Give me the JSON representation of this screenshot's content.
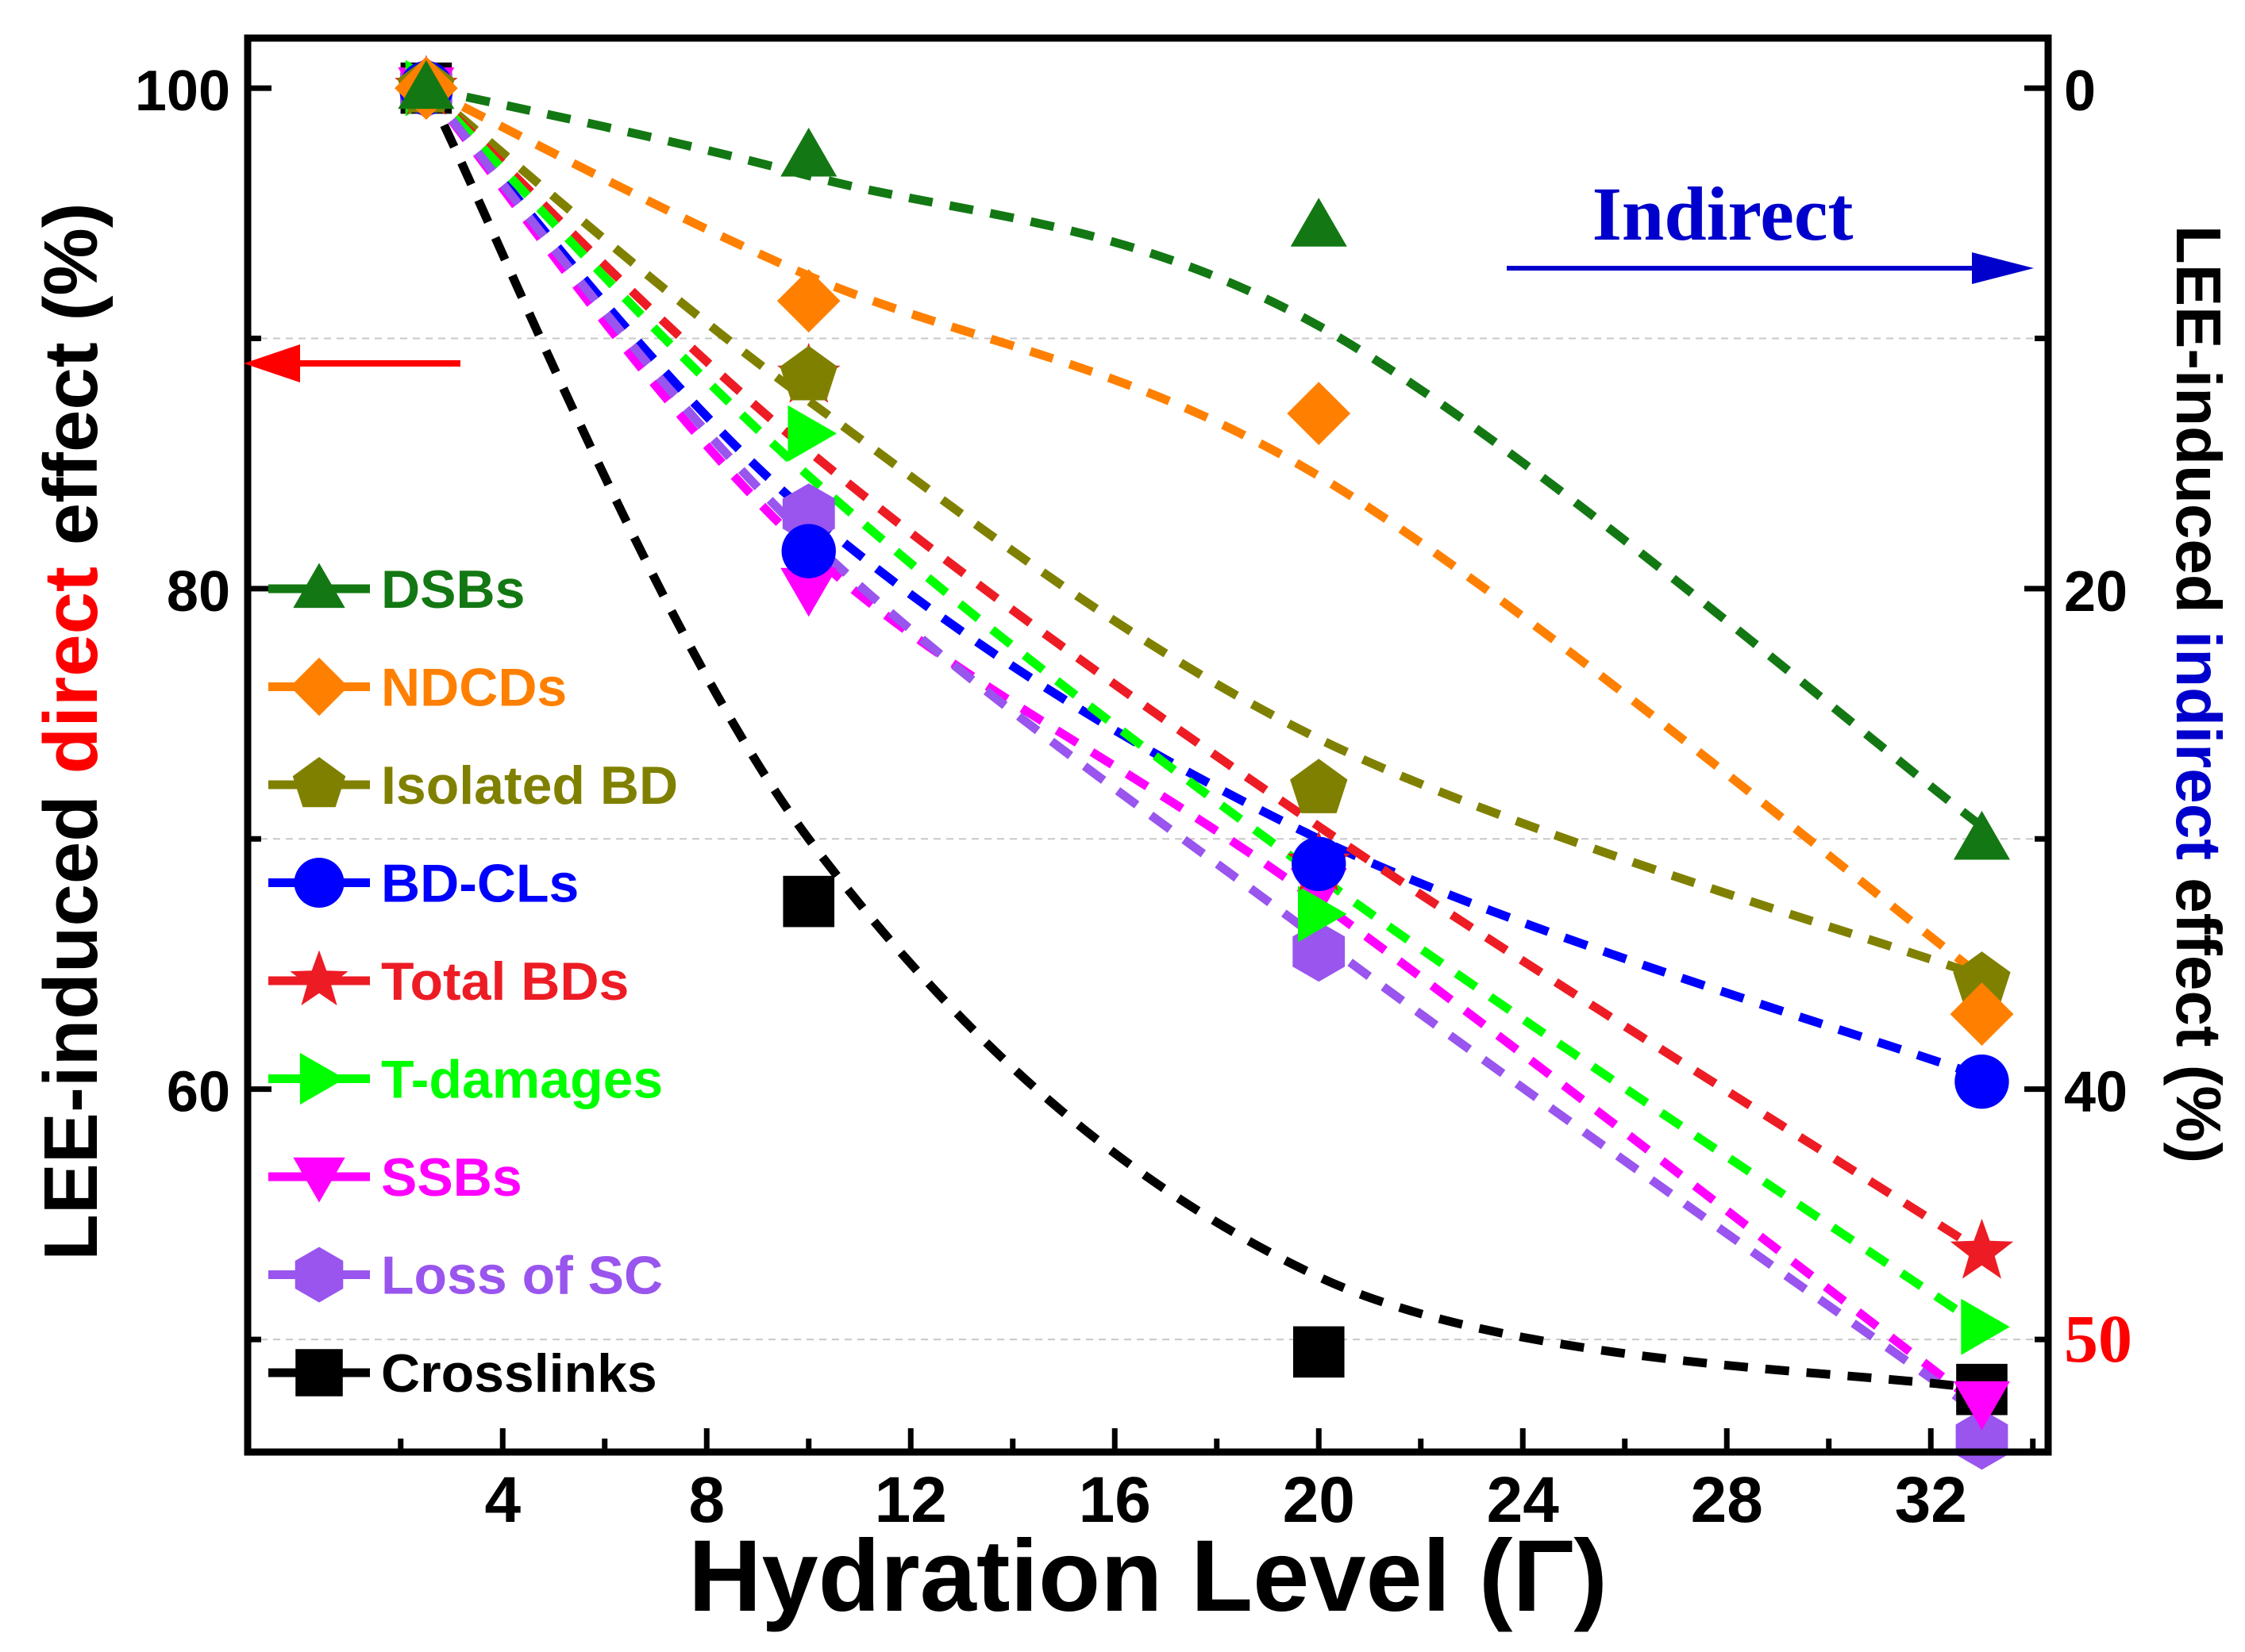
{
  "chart_data": {
    "type": "line",
    "title": "",
    "xlabel": "Hydration Level (Γ)",
    "ylabel": {
      "prefix": "LEE-induced ",
      "highlight": "direct",
      "suffix": " effect (%)",
      "highlight_color": "#ff0000"
    },
    "y2label": {
      "prefix": "LEE-induced ",
      "highlight": "indirect",
      "suffix": " effect (%)",
      "highlight_color": "#0000cc"
    },
    "xlim": [
      -1,
      34.3
    ],
    "ylim": [
      45.5,
      102
    ],
    "y2lim": [
      -2,
      54.5
    ],
    "x_ticks": [
      "4",
      "8",
      "12",
      "16",
      "20",
      "24",
      "28",
      "32"
    ],
    "x_tick_values": [
      4,
      8,
      12,
      16,
      20,
      24,
      28,
      32
    ],
    "y_ticks": [
      "60",
      "80",
      "100"
    ],
    "y_tick_values": [
      60,
      80,
      100
    ],
    "y2_ticks": [
      "0",
      "20",
      "40",
      "50"
    ],
    "y2_tick_values": [
      0,
      20,
      40,
      50
    ],
    "y2_highlight_tick": "50",
    "y2_highlight_color": "#ff0000",
    "grid_y": [
      50,
      70,
      90
    ],
    "x": [
      2.5,
      10,
      20,
      33
    ],
    "series": [
      {
        "name": "DSBs",
        "color": "#137813",
        "marker": "triangle-up",
        "values": [
          100,
          97.3,
          94.5,
          70
        ],
        "fit": [
          100,
          96.5,
          90.5,
          70.5
        ]
      },
      {
        "name": "NDCDs",
        "color": "#ff8000",
        "marker": "diamond",
        "values": [
          100,
          91.5,
          87,
          63
        ],
        "fit": [
          100,
          92.5,
          84.5,
          64.5
        ]
      },
      {
        "name": "Isolated BD",
        "color": "#808000",
        "marker": "pentagon",
        "values": [
          100,
          88.5,
          72,
          64.3
        ],
        "fit": [
          100,
          87.5,
          74,
          64.5
        ]
      },
      {
        "name": "BD-CLs",
        "color": "#0000ff",
        "marker": "circle",
        "values": [
          100,
          81.5,
          69,
          60.3
        ],
        "fit": [
          100,
          83,
          70,
          60.5
        ]
      },
      {
        "name": "Total BDs",
        "color": "#ed1c24",
        "marker": "star",
        "values": [
          100,
          88.5,
          69,
          53.5
        ],
        "fit": [
          100,
          85.5,
          70.5,
          53.5
        ]
      },
      {
        "name": "T-damages",
        "color": "#00ff00",
        "marker": "triangle-right",
        "values": [
          100,
          86.2,
          67,
          50.5
        ],
        "fit": [
          100,
          84.5,
          68.5,
          50.5
        ]
      },
      {
        "name": "SSBs",
        "color": "#ff00ff",
        "marker": "triangle-down",
        "values": [
          100,
          80,
          68,
          47.5
        ],
        "fit": [
          100,
          81.5,
          67.5,
          47.3
        ]
      },
      {
        "name": "Loss of SC",
        "color": "#9955ee",
        "marker": "hexagon",
        "values": [
          100,
          83,
          65.5,
          46
        ],
        "fit": [
          100,
          82,
          66,
          47
        ]
      },
      {
        "name": "Crosslinks",
        "color": "#000000",
        "marker": "square",
        "values": [
          100,
          67.5,
          49.5,
          48
        ],
        "fit": [
          100,
          70,
          52.5,
          48
        ]
      }
    ],
    "annotations": {
      "indirect_label": "Indirect",
      "indirect_color": "#0000cc",
      "left_arrow_color": "#ff0000"
    },
    "legend_position": "left"
  }
}
